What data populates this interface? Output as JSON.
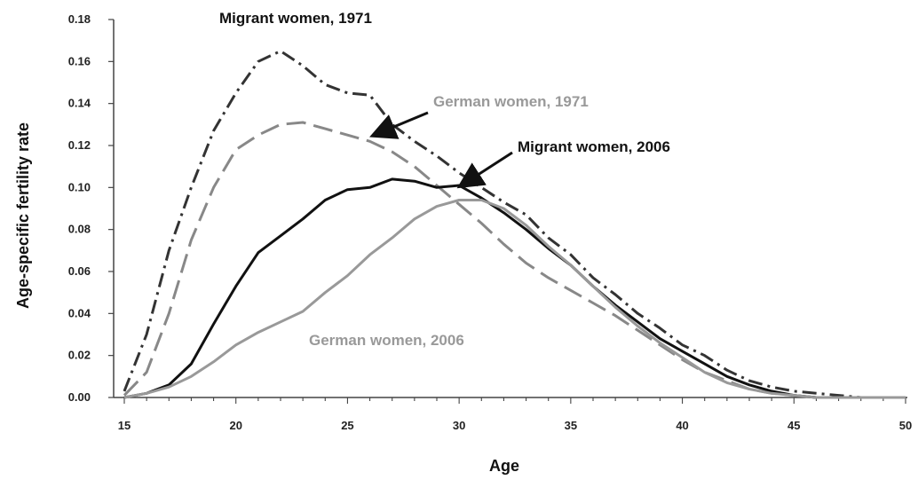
{
  "chart_data": {
    "type": "line",
    "title": "",
    "xlabel": "Age",
    "ylabel": "Age-specific fertility rate",
    "xlim": [
      15,
      50
    ],
    "ylim": [
      0,
      0.18
    ],
    "xticks": [
      "15",
      "20",
      "25",
      "30",
      "35",
      "40",
      "45",
      "50"
    ],
    "yticks": [
      "0.00",
      "0.02",
      "0.04",
      "0.06",
      "0.08",
      "0.10",
      "0.12",
      "0.14",
      "0.16",
      "0.18"
    ],
    "grid": false,
    "legend": "none (direct labels)",
    "series": [
      {
        "name": "Migrant women, 1971",
        "color": "#333333",
        "dash": "dash-dot",
        "x": [
          15,
          16,
          17,
          18,
          19,
          20,
          21,
          22,
          23,
          24,
          25,
          26,
          27,
          28,
          29,
          30,
          31,
          32,
          33,
          34,
          35,
          36,
          37,
          38,
          39,
          40,
          41,
          42,
          43,
          44,
          45,
          46,
          47,
          48,
          49,
          50
        ],
        "y": [
          0.003,
          0.03,
          0.07,
          0.1,
          0.127,
          0.145,
          0.16,
          0.165,
          0.158,
          0.149,
          0.145,
          0.144,
          0.13,
          0.122,
          0.115,
          0.107,
          0.1,
          0.093,
          0.087,
          0.076,
          0.068,
          0.057,
          0.049,
          0.04,
          0.033,
          0.025,
          0.02,
          0.013,
          0.008,
          0.005,
          0.003,
          0.002,
          0.001,
          0.0,
          0.0,
          0.0
        ]
      },
      {
        "name": "German women, 1971",
        "color": "#888888",
        "dash": "dashed",
        "x": [
          15,
          16,
          17,
          18,
          19,
          20,
          21,
          22,
          23,
          24,
          25,
          26,
          27,
          28,
          29,
          30,
          31,
          32,
          33,
          34,
          35,
          36,
          37,
          38,
          39,
          40,
          41,
          42,
          43,
          44,
          45,
          46,
          47,
          48,
          49,
          50
        ],
        "y": [
          0.001,
          0.012,
          0.04,
          0.075,
          0.1,
          0.118,
          0.125,
          0.13,
          0.131,
          0.128,
          0.125,
          0.122,
          0.117,
          0.11,
          0.101,
          0.092,
          0.083,
          0.073,
          0.064,
          0.057,
          0.051,
          0.045,
          0.039,
          0.032,
          0.025,
          0.018,
          0.012,
          0.008,
          0.004,
          0.002,
          0.001,
          0.0,
          0.0,
          0.0,
          0.0,
          0.0
        ]
      },
      {
        "name": "Migrant women, 2006",
        "color": "#111111",
        "dash": "solid",
        "x": [
          15,
          16,
          17,
          18,
          19,
          20,
          21,
          22,
          23,
          24,
          25,
          26,
          27,
          28,
          29,
          30,
          31,
          32,
          33,
          34,
          35,
          36,
          37,
          38,
          39,
          40,
          41,
          42,
          43,
          44,
          45,
          46,
          47,
          48,
          49,
          50
        ],
        "y": [
          0.0,
          0.002,
          0.006,
          0.016,
          0.035,
          0.053,
          0.069,
          0.077,
          0.085,
          0.094,
          0.099,
          0.1,
          0.104,
          0.103,
          0.1,
          0.101,
          0.095,
          0.088,
          0.08,
          0.071,
          0.063,
          0.053,
          0.044,
          0.036,
          0.028,
          0.022,
          0.016,
          0.01,
          0.006,
          0.003,
          0.001,
          0.0,
          0.0,
          0.0,
          0.0,
          0.0
        ]
      },
      {
        "name": "German women, 2006",
        "color": "#999999",
        "dash": "solid",
        "x": [
          15,
          16,
          17,
          18,
          19,
          20,
          21,
          22,
          23,
          24,
          25,
          26,
          27,
          28,
          29,
          30,
          31,
          32,
          33,
          34,
          35,
          36,
          37,
          38,
          39,
          40,
          41,
          42,
          43,
          44,
          45,
          46,
          47,
          48,
          49,
          50
        ],
        "y": [
          0.0,
          0.002,
          0.005,
          0.01,
          0.017,
          0.025,
          0.031,
          0.036,
          0.041,
          0.05,
          0.058,
          0.068,
          0.076,
          0.085,
          0.091,
          0.094,
          0.094,
          0.09,
          0.082,
          0.072,
          0.063,
          0.053,
          0.043,
          0.034,
          0.026,
          0.019,
          0.012,
          0.007,
          0.004,
          0.002,
          0.001,
          0.0,
          0.0,
          0.0,
          0.0,
          0.0
        ]
      }
    ],
    "annotations": [
      {
        "text": "Migrant women, 1971",
        "color": "#111111"
      },
      {
        "text": "German women, 1971",
        "color": "#999999",
        "arrow_to": [
          26.2,
          0.125
        ]
      },
      {
        "text": "Migrant women, 2006",
        "color": "#111111",
        "arrow_to": [
          30.1,
          0.101
        ]
      },
      {
        "text": "German women, 2006",
        "color": "#999999"
      }
    ]
  }
}
